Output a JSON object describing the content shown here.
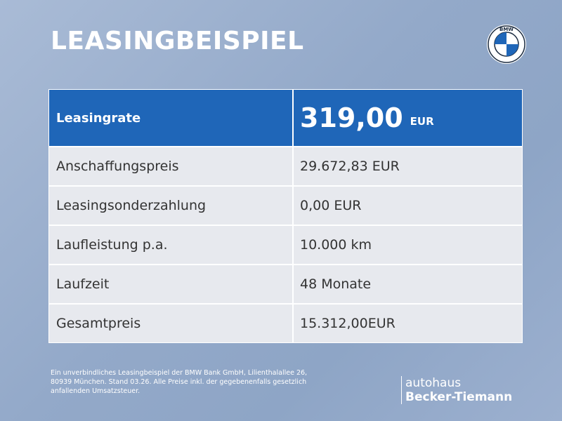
{
  "header": {
    "title": "LEASINGBEISPIEL",
    "logo_text": "BMW"
  },
  "table": {
    "head": {
      "label": "Leasingrate",
      "value": "319,00",
      "unit": "EUR"
    },
    "rows": [
      [
        "Anschaffungspreis",
        "29.672,83 EUR"
      ],
      [
        "Leasingsonderzahlung",
        "0,00 EUR"
      ],
      [
        "Laufleistung p.a.",
        "10.000 km"
      ],
      [
        "Laufzeit",
        "48 Monate"
      ],
      [
        "Gesamtpreis",
        "15.312,00EUR"
      ]
    ]
  },
  "footer": {
    "disclaimer": [
      "Ein unverbindliches Leasingbeispiel der BMW Bank GmbH, Lilienthalallee 26,",
      "80939 München. Stand 03.26. Alle Preise inkl. der gegebenenfalls gesetzlich",
      "anfallenden Umsatzsteuer."
    ],
    "brand": {
      "line1": "autohaus",
      "line2": "Becker-Tiemann"
    }
  }
}
